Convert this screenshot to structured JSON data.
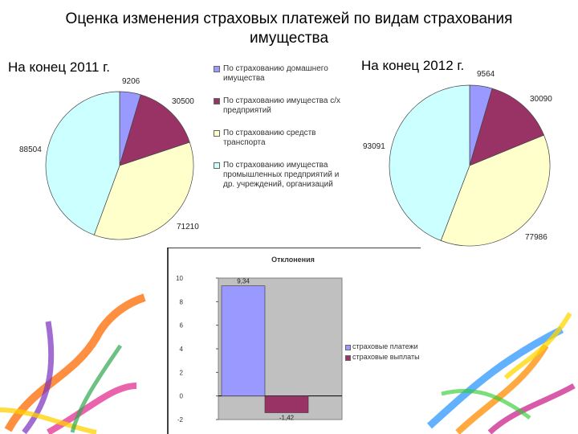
{
  "title": "Оценка изменения страховых платежей по видам страхования имущества",
  "subtitle_2011": "На конец 2011 г.",
  "subtitle_2012": "На конец 2012 г.",
  "colors": {
    "blue": "#9999ff",
    "maroon": "#993366",
    "yellow": "#ffffcc",
    "cyan": "#ccffff"
  },
  "legend": [
    {
      "label": "По страхованию домашнего имущества",
      "color": "#9999ff"
    },
    {
      "label": "По страхованию имущества с/х предприятий",
      "color": "#993366"
    },
    {
      "label": "По страхованию средств транспорта",
      "color": "#ffffcc"
    },
    {
      "label": "По страхованию имущества промышленных предприятий и др. учреждений, организаций",
      "color": "#ccffff"
    }
  ],
  "chart_data": [
    {
      "type": "pie",
      "title": "На конец 2011 г.",
      "values": [
        9206,
        30500,
        71210,
        88504
      ],
      "labels": [
        "9206",
        "30500",
        "71210",
        "88504"
      ]
    },
    {
      "type": "pie",
      "title": "На конец 2012 г.",
      "values": [
        9564,
        30090,
        77986,
        93091
      ],
      "labels": [
        "9564",
        "30090",
        "77986",
        "93091"
      ]
    },
    {
      "type": "bar",
      "title": "Отклонения",
      "series": [
        {
          "name": "страховые платежи",
          "values": [
            9.34
          ],
          "label": "9,34",
          "color": "#9999ff"
        },
        {
          "name": "страховые выплаты",
          "values": [
            -1.42
          ],
          "label": "-1,42",
          "color": "#993366"
        }
      ],
      "ylim": [
        -2,
        10
      ],
      "yticks": [
        "10",
        "8",
        "6",
        "4",
        "2",
        "0",
        "-2"
      ],
      "grid": false
    }
  ]
}
